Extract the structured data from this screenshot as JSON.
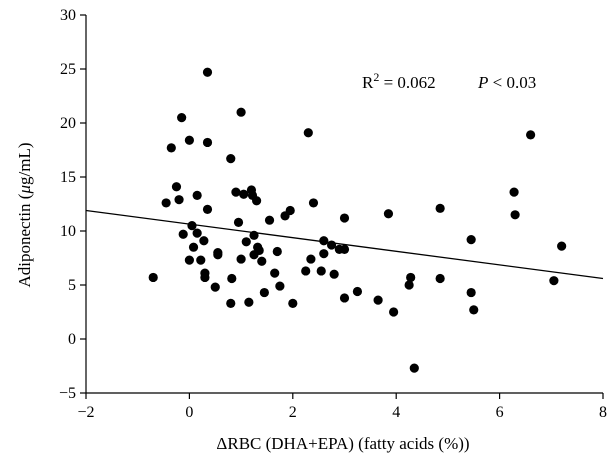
{
  "chart_data": {
    "type": "scatter",
    "title": "",
    "xlabel": "ΔRBC (DHA+EPA) (fatty acids (%))",
    "ylabel_parts": [
      "Adiponectin (",
      "μ",
      "g/mL)"
    ],
    "xlim": [
      -2,
      8
    ],
    "ylim": [
      -5,
      30
    ],
    "xticks": [
      -2,
      0,
      2,
      4,
      6,
      8
    ],
    "yticks": [
      -5,
      0,
      5,
      10,
      15,
      20,
      25,
      30
    ],
    "xtick_labels": [
      "−2",
      "0",
      "2",
      "4",
      "6",
      "8"
    ],
    "ytick_labels": [
      "−5",
      "0",
      "5",
      "10",
      "15",
      "20",
      "25",
      "30"
    ],
    "annotation": {
      "r_label": "R",
      "r_exp": "2",
      "r_value": " = 0.062",
      "p_label": "P",
      "p_value": " < 0.03"
    },
    "regression_line": {
      "x": [
        -2,
        8
      ],
      "y": [
        11.9,
        5.6
      ]
    },
    "series": [
      {
        "points": [
          [
            -0.7,
            5.7
          ],
          [
            -0.45,
            12.6
          ],
          [
            -0.35,
            17.7
          ],
          [
            -0.25,
            14.1
          ],
          [
            -0.2,
            12.9
          ],
          [
            -0.15,
            20.5
          ],
          [
            -0.12,
            9.7
          ],
          [
            0.0,
            18.4
          ],
          [
            0.0,
            7.3
          ],
          [
            0.05,
            10.5
          ],
          [
            0.08,
            8.5
          ],
          [
            0.15,
            9.8
          ],
          [
            0.15,
            13.3
          ],
          [
            0.22,
            7.3
          ],
          [
            0.28,
            9.1
          ],
          [
            0.3,
            6.1
          ],
          [
            0.3,
            5.7
          ],
          [
            0.35,
            24.7
          ],
          [
            0.35,
            12.0
          ],
          [
            0.35,
            18.2
          ],
          [
            0.5,
            4.8
          ],
          [
            0.55,
            7.8
          ],
          [
            0.55,
            8.0
          ],
          [
            0.8,
            16.7
          ],
          [
            0.8,
            3.3
          ],
          [
            0.82,
            5.6
          ],
          [
            0.9,
            13.6
          ],
          [
            0.95,
            10.8
          ],
          [
            1.0,
            21.0
          ],
          [
            1.0,
            7.4
          ],
          [
            1.05,
            13.4
          ],
          [
            1.1,
            9.0
          ],
          [
            1.15,
            3.4
          ],
          [
            1.2,
            13.8
          ],
          [
            1.22,
            13.3
          ],
          [
            1.25,
            9.6
          ],
          [
            1.25,
            7.8
          ],
          [
            1.3,
            12.8
          ],
          [
            1.32,
            8.5
          ],
          [
            1.35,
            8.2
          ],
          [
            1.4,
            7.2
          ],
          [
            1.45,
            4.3
          ],
          [
            1.55,
            11.0
          ],
          [
            1.65,
            6.1
          ],
          [
            1.7,
            8.1
          ],
          [
            1.75,
            4.9
          ],
          [
            1.85,
            11.4
          ],
          [
            1.95,
            11.9
          ],
          [
            2.0,
            3.3
          ],
          [
            2.25,
            6.3
          ],
          [
            2.3,
            19.1
          ],
          [
            2.35,
            7.4
          ],
          [
            2.4,
            12.6
          ],
          [
            2.55,
            6.3
          ],
          [
            2.6,
            7.9
          ],
          [
            2.6,
            9.1
          ],
          [
            2.75,
            8.7
          ],
          [
            2.8,
            6.0
          ],
          [
            2.9,
            8.3
          ],
          [
            3.0,
            8.3
          ],
          [
            3.0,
            3.8
          ],
          [
            3.0,
            11.2
          ],
          [
            3.25,
            4.4
          ],
          [
            3.65,
            3.6
          ],
          [
            3.85,
            11.6
          ],
          [
            3.95,
            2.5
          ],
          [
            4.25,
            5.0
          ],
          [
            4.28,
            5.7
          ],
          [
            4.35,
            -2.7
          ],
          [
            4.85,
            5.6
          ],
          [
            4.85,
            12.1
          ],
          [
            5.45,
            4.3
          ],
          [
            5.45,
            9.2
          ],
          [
            5.5,
            2.7
          ],
          [
            6.28,
            13.6
          ],
          [
            6.3,
            11.5
          ],
          [
            6.6,
            18.9
          ],
          [
            7.05,
            5.4
          ],
          [
            7.2,
            8.6
          ]
        ]
      }
    ]
  }
}
